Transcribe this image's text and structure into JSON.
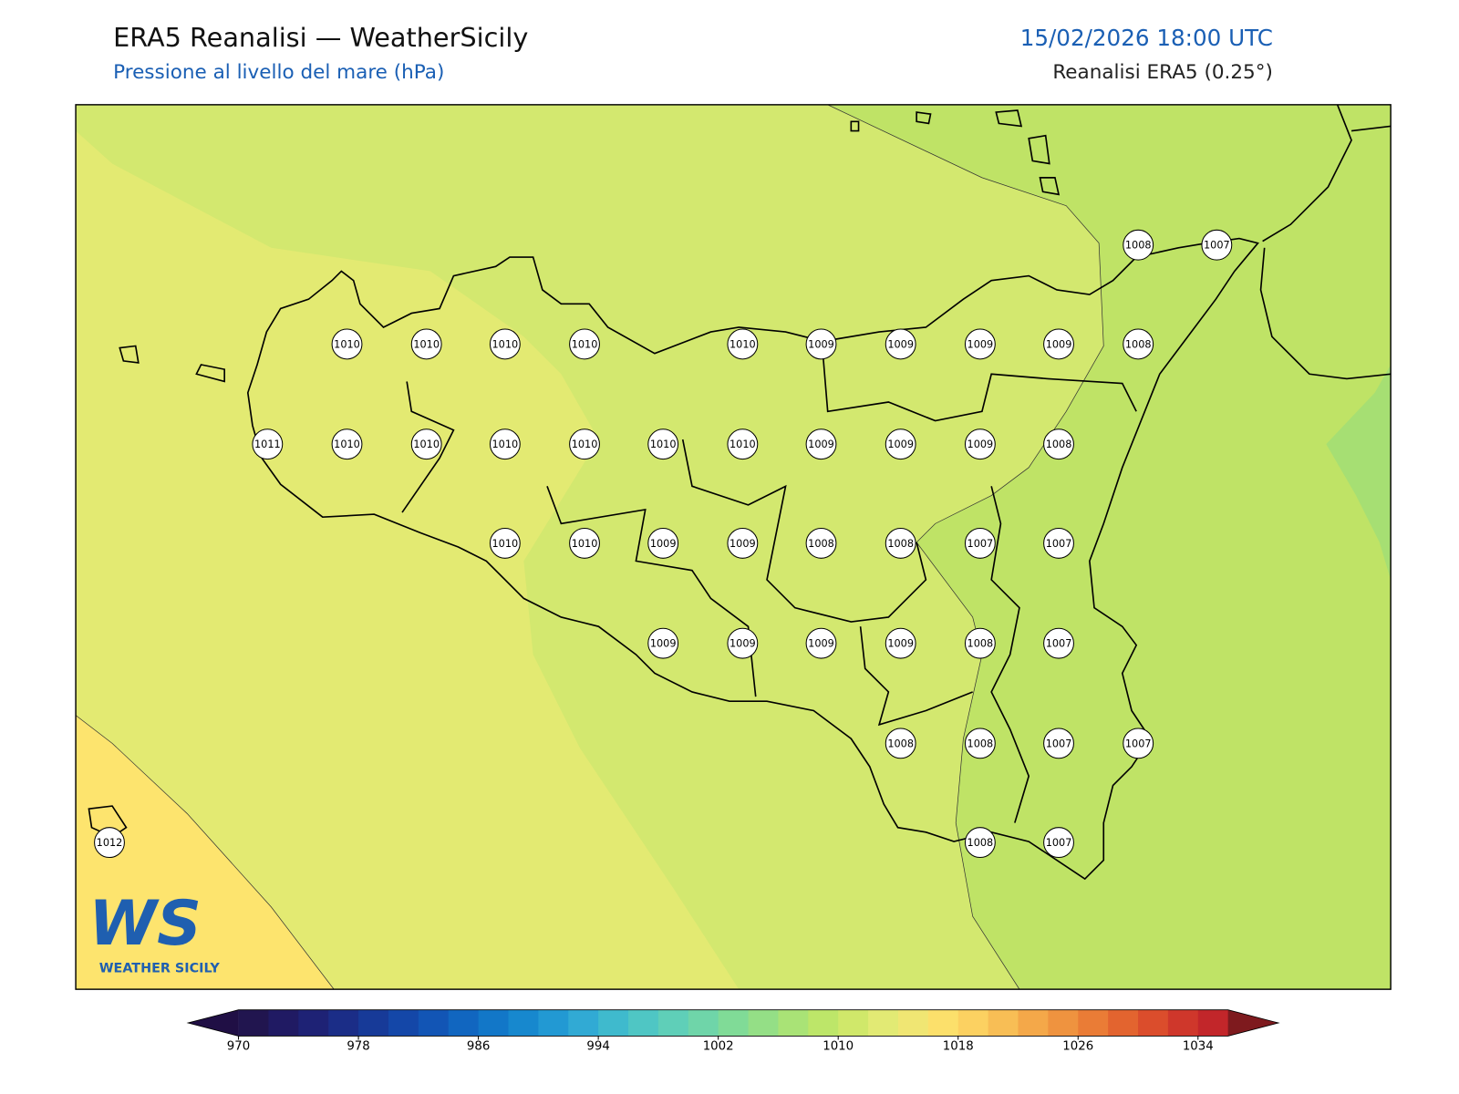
{
  "header": {
    "title": "ERA5 Reanalisi — WeatherSicily",
    "subtitle": "Pressione al livello del mare (hPa)",
    "datetime": "15/02/2026 18:00 UTC",
    "source": "Reanalisi ERA5 (0.25°)"
  },
  "stations": [
    1008,
    1007,
    1010,
    1010,
    1010,
    1010,
    1010,
    1009,
    1009,
    1009,
    1009,
    1008,
    1011,
    1010,
    1010,
    1010,
    1010,
    1010,
    1010,
    1009,
    1009,
    1009,
    1008,
    1010,
    1010,
    1009,
    1009,
    1008,
    1008,
    1007,
    1007,
    1009,
    1009,
    1009,
    1009,
    1008,
    1007,
    1008,
    1008,
    1007,
    1007,
    1008,
    1007,
    1012
  ],
  "logo": {
    "mark": "WS",
    "name": "WEATHER SICILY"
  },
  "colorbar": {
    "range": [
      970,
      1036
    ],
    "step": 2,
    "ticks": [
      970,
      978,
      986,
      994,
      1002,
      1010,
      1018,
      1026,
      1034
    ],
    "colors": [
      "#21154f",
      "#201a63",
      "#1e2275",
      "#1b2d87",
      "#173a98",
      "#1447a8",
      "#1255b5",
      "#1166c0",
      "#1277c8",
      "#1788ce",
      "#2299d3",
      "#31aad4",
      "#3fbacd",
      "#4fc6c4",
      "#5fcfb8",
      "#6fd5a9",
      "#80db97",
      "#94df86",
      "#a9e376",
      "#bde669",
      "#d0e86a",
      "#e2ea74",
      "#f0e673",
      "#fce06b",
      "#fcd161",
      "#f8be55",
      "#f4a849",
      "#ef933f",
      "#ea7c36",
      "#e3642f",
      "#db4d2c",
      "#cf372b",
      "#c2262a"
    ],
    "under": "#200f45",
    "over": "#7e1a1e"
  }
}
